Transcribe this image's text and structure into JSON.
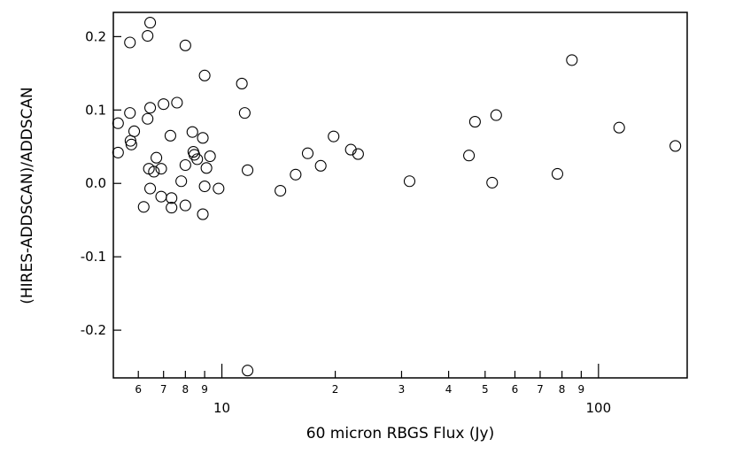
{
  "chart_data": {
    "type": "scatter",
    "title": "",
    "xlabel": "60 micron RBGS Flux (Jy)",
    "ylabel": "(HIRES-ADDSCAN)/ADDSCAN",
    "x_scale": "log",
    "xlim": [
      5.15,
      172
    ],
    "ylim": [
      -0.265,
      0.233
    ],
    "grid": false,
    "legend": "none",
    "x_major_ticks": [
      {
        "value": 10,
        "label": "10"
      },
      {
        "value": 100,
        "label": "100"
      }
    ],
    "x_minor_ticks": [
      {
        "value": 6,
        "label": "6"
      },
      {
        "value": 7,
        "label": "7"
      },
      {
        "value": 8,
        "label": "8"
      },
      {
        "value": 9,
        "label": "9"
      },
      {
        "value": 20,
        "label": "2"
      },
      {
        "value": 30,
        "label": "3"
      },
      {
        "value": 40,
        "label": "4"
      },
      {
        "value": 50,
        "label": "5"
      },
      {
        "value": 60,
        "label": "6"
      },
      {
        "value": 70,
        "label": "7"
      },
      {
        "value": 80,
        "label": "8"
      },
      {
        "value": 90,
        "label": "9"
      }
    ],
    "y_ticks": [
      {
        "value": 0.2,
        "label": "0.2"
      },
      {
        "value": 0.1,
        "label": "0.1"
      },
      {
        "value": 0.0,
        "label": "0.0"
      },
      {
        "value": -0.1,
        "label": "-0.1"
      },
      {
        "value": -0.2,
        "label": "-0.2"
      }
    ],
    "marker": {
      "shape": "open-circle",
      "color": "#000000"
    },
    "points": [
      {
        "x": 5.3,
        "y": 0.082
      },
      {
        "x": 5.3,
        "y": 0.042
      },
      {
        "x": 5.7,
        "y": 0.192
      },
      {
        "x": 5.7,
        "y": 0.096
      },
      {
        "x": 5.72,
        "y": 0.058
      },
      {
        "x": 5.75,
        "y": 0.053
      },
      {
        "x": 5.85,
        "y": 0.071
      },
      {
        "x": 6.2,
        "y": -0.032
      },
      {
        "x": 6.35,
        "y": 0.201
      },
      {
        "x": 6.45,
        "y": 0.219
      },
      {
        "x": 6.35,
        "y": 0.088
      },
      {
        "x": 6.45,
        "y": 0.103
      },
      {
        "x": 6.4,
        "y": 0.02
      },
      {
        "x": 6.45,
        "y": -0.007
      },
      {
        "x": 6.6,
        "y": 0.016
      },
      {
        "x": 6.7,
        "y": 0.035
      },
      {
        "x": 6.9,
        "y": 0.02
      },
      {
        "x": 6.9,
        "y": -0.018
      },
      {
        "x": 7.0,
        "y": 0.108
      },
      {
        "x": 7.3,
        "y": 0.065
      },
      {
        "x": 7.35,
        "y": -0.02
      },
      {
        "x": 7.35,
        "y": -0.033
      },
      {
        "x": 7.6,
        "y": 0.11
      },
      {
        "x": 7.8,
        "y": 0.003
      },
      {
        "x": 8.0,
        "y": 0.188
      },
      {
        "x": 8.0,
        "y": 0.025
      },
      {
        "x": 8.0,
        "y": -0.03
      },
      {
        "x": 8.35,
        "y": 0.07
      },
      {
        "x": 8.4,
        "y": 0.043
      },
      {
        "x": 8.45,
        "y": 0.039
      },
      {
        "x": 8.6,
        "y": 0.033
      },
      {
        "x": 8.9,
        "y": 0.062
      },
      {
        "x": 8.9,
        "y": -0.042
      },
      {
        "x": 9.0,
        "y": 0.147
      },
      {
        "x": 9.0,
        "y": -0.004
      },
      {
        "x": 9.1,
        "y": 0.021
      },
      {
        "x": 9.3,
        "y": 0.037
      },
      {
        "x": 9.8,
        "y": -0.007
      },
      {
        "x": 11.3,
        "y": 0.136
      },
      {
        "x": 11.5,
        "y": 0.096
      },
      {
        "x": 11.7,
        "y": 0.018
      },
      {
        "x": 11.7,
        "y": -0.255
      },
      {
        "x": 14.3,
        "y": -0.01
      },
      {
        "x": 15.7,
        "y": 0.012
      },
      {
        "x": 16.9,
        "y": 0.041
      },
      {
        "x": 18.3,
        "y": 0.024
      },
      {
        "x": 19.8,
        "y": 0.064
      },
      {
        "x": 22.0,
        "y": 0.046
      },
      {
        "x": 23.0,
        "y": 0.04
      },
      {
        "x": 31.5,
        "y": 0.003
      },
      {
        "x": 45.3,
        "y": 0.038
      },
      {
        "x": 47.0,
        "y": 0.084
      },
      {
        "x": 52.2,
        "y": 0.001
      },
      {
        "x": 53.5,
        "y": 0.093
      },
      {
        "x": 77.8,
        "y": 0.013
      },
      {
        "x": 85.0,
        "y": 0.168
      },
      {
        "x": 113.5,
        "y": 0.076
      },
      {
        "x": 160.0,
        "y": 0.051
      }
    ]
  }
}
